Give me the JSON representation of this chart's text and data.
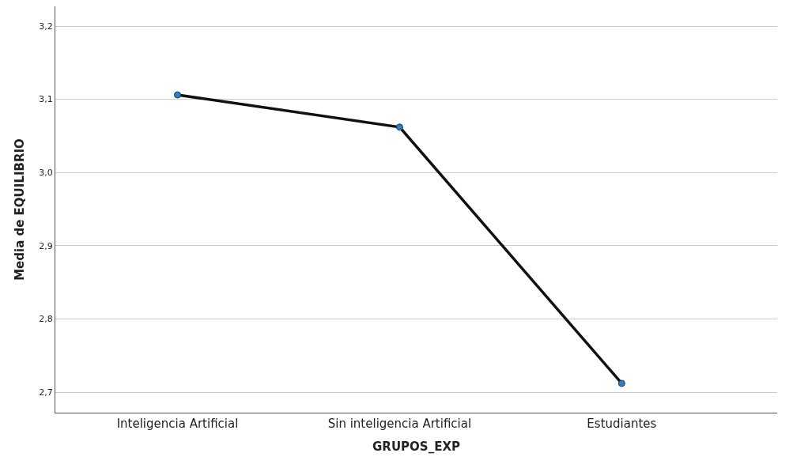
{
  "chart_data": {
    "type": "line",
    "xlabel": "GRUPOS_EXP",
    "ylabel": "Media de EQUILIBRIO",
    "categories": [
      "Inteligencia Artificial",
      "Sin inteligencia Artificial",
      "Estudiantes"
    ],
    "series": [
      {
        "color": "#111111",
        "values": [
          3.106,
          3.062,
          2.712
        ]
      }
    ],
    "marker": "circle",
    "line_style": "solid",
    "ylim": [
      2.672,
      3.227
    ],
    "yticks": [
      {
        "value": 2.7,
        "label": "2,7"
      },
      {
        "value": 2.8,
        "label": "2,8"
      },
      {
        "value": 2.9,
        "label": "2,9"
      },
      {
        "value": 3.0,
        "label": "3,0"
      },
      {
        "value": 3.1,
        "label": "3,1"
      },
      {
        "value": 3.2,
        "label": "3,2"
      }
    ],
    "grid": "y"
  }
}
